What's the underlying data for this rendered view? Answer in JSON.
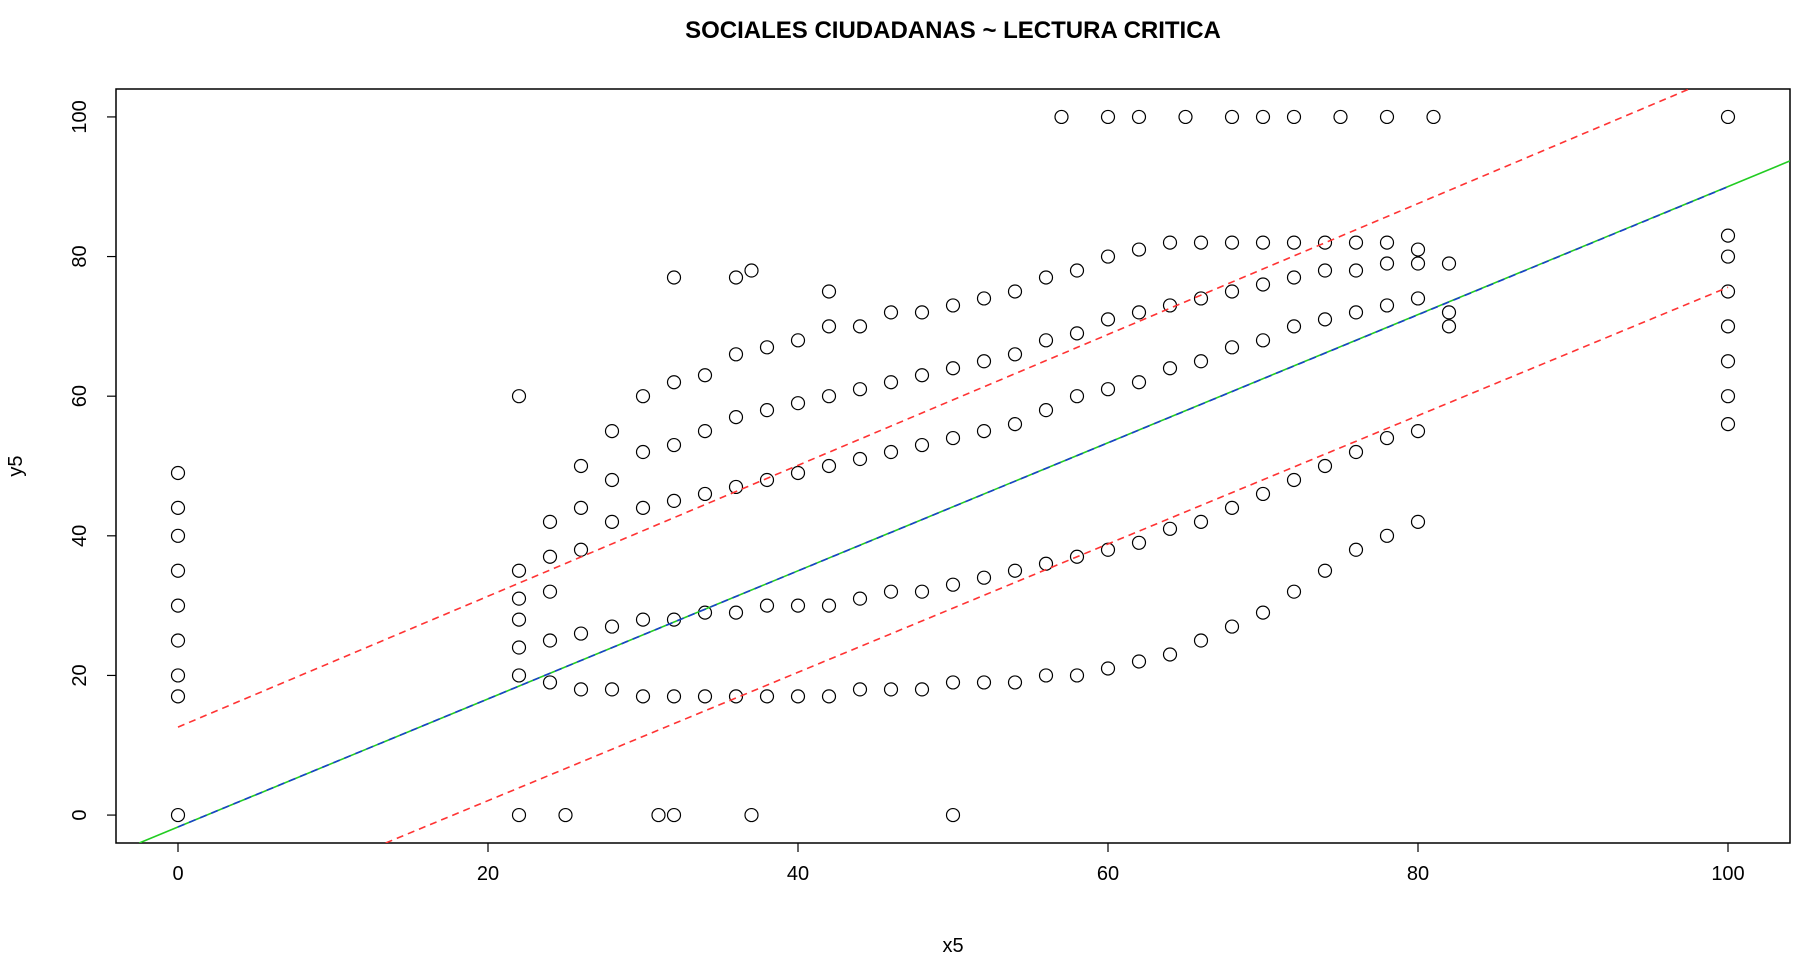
{
  "chart_data": {
    "type": "scatter",
    "title": "SOCIALES CIUDADANAS ~ LECTURA CRITICA",
    "x_label": "x5",
    "y_label": "y5",
    "xlim": [
      -4,
      104
    ],
    "ylim": [
      -4,
      104
    ],
    "xticks": [
      0,
      20,
      40,
      60,
      80,
      100
    ],
    "yticks": [
      0,
      20,
      40,
      60,
      80,
      100
    ],
    "point_color": "#000000",
    "points": {
      "x": [
        0,
        0,
        0,
        0,
        0,
        0,
        0,
        0,
        0,
        100,
        100,
        100,
        100,
        100,
        100,
        100,
        100,
        57,
        60,
        62,
        65,
        68,
        70,
        72,
        75,
        78,
        81,
        22,
        25,
        31,
        32,
        37,
        50,
        22,
        37,
        36,
        32,
        42,
        22,
        22,
        22,
        22,
        22,
        24,
        24,
        24,
        24,
        24,
        26,
        26,
        26,
        26,
        26,
        28,
        28,
        28,
        28,
        28,
        30,
        30,
        30,
        30,
        30,
        32,
        32,
        32,
        32,
        32,
        34,
        34,
        34,
        34,
        34,
        36,
        36,
        36,
        36,
        36,
        38,
        38,
        38,
        38,
        38,
        40,
        40,
        40,
        40,
        40,
        42,
        42,
        42,
        42,
        42,
        44,
        44,
        44,
        44,
        44,
        46,
        46,
        46,
        46,
        46,
        48,
        48,
        48,
        48,
        48,
        50,
        50,
        50,
        50,
        50,
        52,
        52,
        52,
        52,
        52,
        54,
        54,
        54,
        54,
        54,
        56,
        56,
        56,
        56,
        56,
        58,
        58,
        58,
        58,
        58,
        60,
        60,
        60,
        60,
        60,
        62,
        62,
        62,
        62,
        62,
        64,
        64,
        64,
        64,
        64,
        66,
        66,
        66,
        66,
        66,
        68,
        68,
        68,
        68,
        68,
        70,
        70,
        70,
        70,
        70,
        72,
        72,
        72,
        72,
        72,
        74,
        74,
        74,
        74,
        74,
        76,
        76,
        76,
        76,
        76,
        78,
        78,
        78,
        78,
        78,
        80,
        80,
        80,
        80,
        80,
        82,
        82,
        82
      ],
      "y": [
        0,
        17,
        20,
        25,
        30,
        35,
        40,
        44,
        49,
        56,
        60,
        65,
        70,
        75,
        80,
        83,
        100,
        100,
        100,
        100,
        100,
        100,
        100,
        100,
        100,
        100,
        100,
        0,
        0,
        0,
        0,
        0,
        0,
        60,
        78,
        77,
        77,
        75,
        20,
        24,
        28,
        31,
        35,
        19,
        25,
        32,
        37,
        42,
        18,
        26,
        38,
        44,
        50,
        18,
        27,
        42,
        48,
        55,
        17,
        28,
        44,
        52,
        60,
        17,
        28,
        45,
        53,
        62,
        17,
        29,
        46,
        55,
        63,
        17,
        29,
        47,
        57,
        66,
        17,
        30,
        48,
        58,
        67,
        17,
        30,
        49,
        59,
        68,
        17,
        30,
        50,
        60,
        70,
        18,
        31,
        51,
        61,
        70,
        18,
        32,
        52,
        62,
        72,
        18,
        32,
        53,
        63,
        72,
        19,
        33,
        54,
        64,
        73,
        19,
        34,
        55,
        65,
        74,
        19,
        35,
        56,
        66,
        75,
        20,
        36,
        58,
        68,
        77,
        20,
        37,
        60,
        69,
        78,
        21,
        38,
        61,
        71,
        80,
        22,
        39,
        62,
        72,
        81,
        23,
        41,
        64,
        73,
        82,
        25,
        42,
        65,
        74,
        82,
        27,
        44,
        67,
        75,
        82,
        29,
        46,
        68,
        76,
        82,
        32,
        48,
        70,
        77,
        82,
        35,
        50,
        71,
        78,
        82,
        38,
        52,
        72,
        78,
        82,
        40,
        54,
        73,
        79,
        82,
        42,
        55,
        74,
        79,
        81,
        70,
        72,
        79
      ]
    },
    "lines": [
      {
        "color": "#22cc22",
        "dash": false,
        "x": [
          -2.5,
          104
        ],
        "y": [
          -4,
          93.7
        ]
      },
      {
        "color": "#1a3fcc",
        "dash": true,
        "x": [
          0,
          100
        ],
        "y": [
          -1.7,
          90
        ]
      },
      {
        "color": "#ff3333",
        "dash": true,
        "x": [
          0,
          97.5
        ],
        "y": [
          12.6,
          104
        ]
      },
      {
        "color": "#ff3333",
        "dash": true,
        "x": [
          13.4,
          100
        ],
        "y": [
          -4,
          75.6
        ]
      }
    ]
  }
}
